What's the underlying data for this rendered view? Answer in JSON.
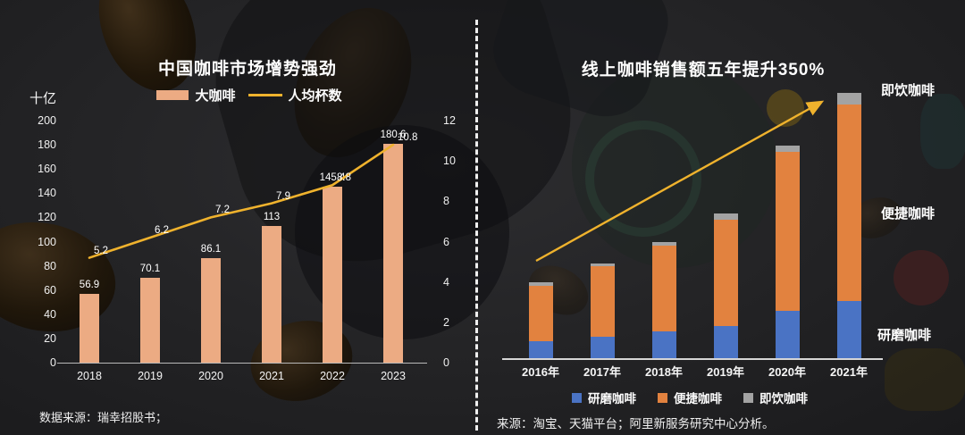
{
  "page": {
    "background": "#242426",
    "divider_color": "#f0f0f0",
    "accent_gold": "#efb22d"
  },
  "chart_data": [
    {
      "type": "bar",
      "panel": "left",
      "title": "中国咖啡市场增势强劲",
      "ylabel": "十亿",
      "categories": [
        "2018",
        "2019",
        "2020",
        "2021",
        "2022",
        "2023"
      ],
      "series": [
        {
          "name": "大咖啡",
          "type": "bar",
          "axis": "left",
          "color": "#ecab83",
          "values": [
            56.9,
            70.1,
            86.1,
            113,
            145.4,
            180.6
          ],
          "labels": [
            "56.9",
            "70.1",
            "86.1",
            "113",
            "145.4",
            "180.6"
          ]
        },
        {
          "name": "人均杯数",
          "type": "line",
          "axis": "right",
          "color": "#efb22d",
          "values": [
            5.2,
            6.2,
            7.2,
            7.9,
            8.8,
            10.8
          ],
          "labels": [
            "5.2",
            "6.2",
            "7.2",
            "7.9",
            "8.8",
            "10.8"
          ]
        }
      ],
      "left_axis": {
        "min": 0,
        "max": 200,
        "step": 20
      },
      "right_axis": {
        "min": 0,
        "max": 12,
        "step": 2
      },
      "grid": false,
      "legend_position": "top",
      "source": "数据来源：瑞幸招股书；"
    },
    {
      "type": "stacked-bar",
      "panel": "right",
      "title": "线上咖啡销售额五年提升350%",
      "categories": [
        "2016年",
        "2017年",
        "2018年",
        "2019年",
        "2020年",
        "2021年"
      ],
      "series": [
        {
          "name": "研磨咖啡",
          "color": "#4a73c4",
          "values": [
            23,
            29,
            36,
            43,
            63,
            76
          ]
        },
        {
          "name": "便捷咖啡",
          "color": "#e2823f",
          "values": [
            74,
            94,
            114,
            142,
            212,
            262
          ]
        },
        {
          "name": "即饮咖啡",
          "color": "#a3a3a3",
          "values": [
            4,
            3,
            5,
            8,
            8,
            16
          ]
        }
      ],
      "value_scale": "相对规模（2016年≈100，按图估算）",
      "side_labels": [
        "即饮咖啡",
        "便捷咖啡",
        "研磨咖啡"
      ],
      "trend_arrow": true,
      "legend_position": "bottom",
      "grid": false,
      "source": "来源：淘宝、天猫平台；阿里新服务研究中心分析。"
    }
  ]
}
